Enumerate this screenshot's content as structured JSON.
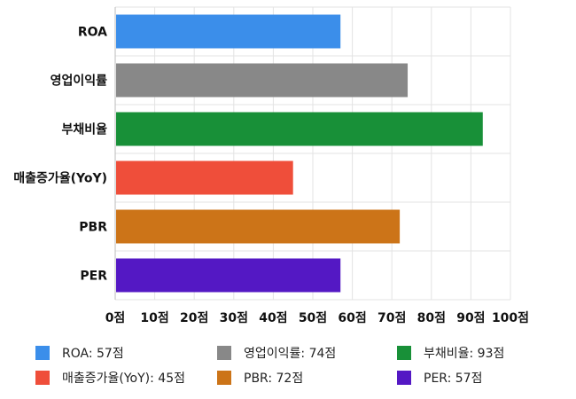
{
  "chart_data": {
    "type": "bar",
    "orientation": "horizontal",
    "categories": [
      "ROA",
      "영업이익률",
      "부채비율",
      "매출증가율(YoY)",
      "PBR",
      "PER"
    ],
    "values": [
      57,
      74,
      93,
      45,
      72,
      57
    ],
    "colors": [
      "#3b8eea",
      "#888888",
      "#189038",
      "#ef4e3a",
      "#cc7418",
      "#5418c4"
    ],
    "xlim": [
      0,
      100
    ],
    "ticks": [
      0,
      10,
      20,
      30,
      40,
      50,
      60,
      70,
      80,
      90,
      100
    ],
    "tick_suffix": "점",
    "grid": true,
    "legend_position": "bottom"
  },
  "legend": {
    "items": [
      {
        "label": "ROA: 57점",
        "color": "#3b8eea"
      },
      {
        "label": "영업이익률: 74점",
        "color": "#888888"
      },
      {
        "label": "부채비율: 93점",
        "color": "#189038"
      },
      {
        "label": "매출증가율(YoY): 45점",
        "color": "#ef4e3a"
      },
      {
        "label": "PBR: 72점",
        "color": "#cc7418"
      },
      {
        "label": "PER: 57점",
        "color": "#5418c4"
      }
    ]
  }
}
